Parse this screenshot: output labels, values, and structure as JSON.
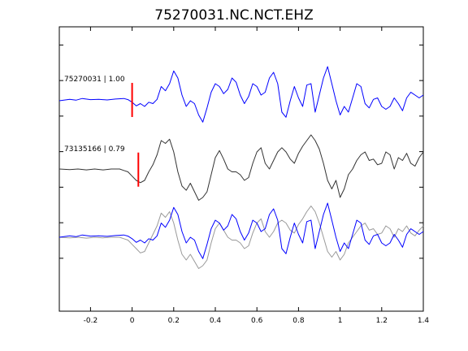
{
  "chart_data": {
    "type": "line",
    "title": "75270031.NC.NCT.EHZ",
    "xlabel": "",
    "ylabel": "",
    "xlim": [
      -0.35,
      1.4
    ],
    "ylim": [
      0,
      1
    ],
    "xticks": [
      -0.2,
      0,
      0.2,
      0.4,
      0.6,
      0.8,
      1,
      1.2,
      1.4
    ],
    "xtick_labels": [
      "-0.2",
      "0",
      "0.2",
      "0.4",
      "0.6",
      "0.8",
      "1",
      "1.2",
      "1.4"
    ],
    "grid": false,
    "traces": [
      {
        "label": "75270031 | 1.00",
        "color": "#0000ff",
        "baseline": 0.74,
        "pick_time": 0.0,
        "pick_color": "#ff0000",
        "x": [
          -0.35,
          -0.3,
          -0.27,
          -0.24,
          -0.2,
          -0.16,
          -0.12,
          -0.08,
          -0.04,
          -0.02,
          0,
          0.02,
          0.04,
          0.06,
          0.08,
          0.1,
          0.12,
          0.14,
          0.16,
          0.18,
          0.2,
          0.22,
          0.24,
          0.26,
          0.28,
          0.3,
          0.32,
          0.34,
          0.36,
          0.38,
          0.4,
          0.42,
          0.44,
          0.46,
          0.48,
          0.5,
          0.52,
          0.54,
          0.56,
          0.58,
          0.6,
          0.62,
          0.64,
          0.66,
          0.68,
          0.7,
          0.72,
          0.74,
          0.76,
          0.78,
          0.8,
          0.82,
          0.84,
          0.86,
          0.88,
          0.9,
          0.92,
          0.94,
          0.96,
          0.98,
          1,
          1.02,
          1.04,
          1.06,
          1.08,
          1.1,
          1.12,
          1.14,
          1.16,
          1.18,
          1.2,
          1.22,
          1.24,
          1.26,
          1.28,
          1.3,
          1.32,
          1.34,
          1.36,
          1.38,
          1.4
        ],
        "y": [
          0.74,
          0.745,
          0.742,
          0.748,
          0.744,
          0.745,
          0.743,
          0.746,
          0.748,
          0.744,
          0.735,
          0.722,
          0.73,
          0.72,
          0.735,
          0.73,
          0.745,
          0.79,
          0.775,
          0.8,
          0.845,
          0.82,
          0.76,
          0.72,
          0.74,
          0.73,
          0.69,
          0.665,
          0.715,
          0.77,
          0.8,
          0.79,
          0.765,
          0.78,
          0.82,
          0.805,
          0.76,
          0.73,
          0.755,
          0.8,
          0.79,
          0.76,
          0.77,
          0.82,
          0.84,
          0.8,
          0.7,
          0.682,
          0.74,
          0.79,
          0.75,
          0.72,
          0.795,
          0.8,
          0.7,
          0.76,
          0.82,
          0.86,
          0.8,
          0.74,
          0.69,
          0.72,
          0.7,
          0.75,
          0.8,
          0.79,
          0.73,
          0.715,
          0.745,
          0.75,
          0.72,
          0.71,
          0.72,
          0.75,
          0.73,
          0.705,
          0.75,
          0.77,
          0.76,
          0.75,
          0.76
        ]
      },
      {
        "label": "73135166 | 0.79",
        "color": "#333333",
        "baseline": 0.495,
        "pick_time": 0.03,
        "pick_color": "#ff0000",
        "x": [
          -0.35,
          -0.3,
          -0.26,
          -0.22,
          -0.18,
          -0.14,
          -0.1,
          -0.06,
          -0.04,
          -0.02,
          0,
          0.02,
          0.04,
          0.06,
          0.08,
          0.1,
          0.12,
          0.14,
          0.16,
          0.18,
          0.2,
          0.22,
          0.24,
          0.26,
          0.28,
          0.3,
          0.32,
          0.34,
          0.36,
          0.38,
          0.4,
          0.42,
          0.44,
          0.46,
          0.48,
          0.5,
          0.52,
          0.54,
          0.56,
          0.58,
          0.6,
          0.62,
          0.64,
          0.66,
          0.68,
          0.7,
          0.72,
          0.74,
          0.76,
          0.78,
          0.8,
          0.82,
          0.84,
          0.86,
          0.88,
          0.9,
          0.92,
          0.94,
          0.96,
          0.98,
          1,
          1.02,
          1.04,
          1.06,
          1.08,
          1.1,
          1.12,
          1.14,
          1.16,
          1.18,
          1.2,
          1.22,
          1.24,
          1.26,
          1.28,
          1.3,
          1.32,
          1.34,
          1.36,
          1.38,
          1.4
        ],
        "y": [
          0.5,
          0.498,
          0.5,
          0.497,
          0.5,
          0.497,
          0.5,
          0.5,
          0.495,
          0.49,
          0.475,
          0.46,
          0.452,
          0.46,
          0.49,
          0.515,
          0.55,
          0.6,
          0.59,
          0.605,
          0.56,
          0.49,
          0.44,
          0.425,
          0.45,
          0.42,
          0.39,
          0.4,
          0.42,
          0.48,
          0.54,
          0.565,
          0.535,
          0.5,
          0.49,
          0.49,
          0.48,
          0.46,
          0.47,
          0.52,
          0.56,
          0.575,
          0.52,
          0.5,
          0.53,
          0.56,
          0.575,
          0.56,
          0.535,
          0.52,
          0.555,
          0.58,
          0.6,
          0.62,
          0.6,
          0.57,
          0.52,
          0.46,
          0.43,
          0.46,
          0.4,
          0.43,
          0.48,
          0.5,
          0.53,
          0.55,
          0.56,
          0.53,
          0.535,
          0.515,
          0.52,
          0.56,
          0.55,
          0.5,
          0.54,
          0.53,
          0.555,
          0.52,
          0.51,
          0.54,
          0.56
        ]
      },
      {
        "label": "",
        "color": "#999999",
        "baseline": 0.26,
        "pick_time": null,
        "x": [
          -0.35,
          -0.3,
          -0.26,
          -0.22,
          -0.18,
          -0.14,
          -0.1,
          -0.06,
          -0.04,
          -0.02,
          0,
          0.02,
          0.04,
          0.06,
          0.08,
          0.1,
          0.12,
          0.14,
          0.16,
          0.18,
          0.2,
          0.22,
          0.24,
          0.26,
          0.28,
          0.3,
          0.32,
          0.34,
          0.36,
          0.38,
          0.4,
          0.42,
          0.44,
          0.46,
          0.48,
          0.5,
          0.52,
          0.54,
          0.56,
          0.58,
          0.6,
          0.62,
          0.64,
          0.66,
          0.68,
          0.7,
          0.72,
          0.74,
          0.76,
          0.78,
          0.8,
          0.82,
          0.84,
          0.86,
          0.88,
          0.9,
          0.92,
          0.94,
          0.96,
          0.98,
          1,
          1.02,
          1.04,
          1.06,
          1.08,
          1.1,
          1.12,
          1.14,
          1.16,
          1.18,
          1.2,
          1.22,
          1.24,
          1.26,
          1.28,
          1.3,
          1.32,
          1.34,
          1.36,
          1.38,
          1.4
        ],
        "y": [
          0.26,
          0.258,
          0.26,
          0.257,
          0.26,
          0.258,
          0.26,
          0.26,
          0.255,
          0.25,
          0.235,
          0.22,
          0.205,
          0.21,
          0.24,
          0.27,
          0.3,
          0.345,
          0.33,
          0.35,
          0.31,
          0.25,
          0.2,
          0.18,
          0.2,
          0.175,
          0.15,
          0.16,
          0.18,
          0.24,
          0.29,
          0.31,
          0.285,
          0.26,
          0.25,
          0.25,
          0.24,
          0.22,
          0.23,
          0.275,
          0.31,
          0.325,
          0.28,
          0.26,
          0.28,
          0.31,
          0.32,
          0.31,
          0.285,
          0.275,
          0.305,
          0.325,
          0.35,
          0.37,
          0.35,
          0.31,
          0.26,
          0.21,
          0.19,
          0.21,
          0.18,
          0.2,
          0.24,
          0.26,
          0.28,
          0.3,
          0.31,
          0.285,
          0.29,
          0.27,
          0.275,
          0.3,
          0.29,
          0.26,
          0.29,
          0.28,
          0.3,
          0.275,
          0.265,
          0.285,
          0.3
        ]
      },
      {
        "label": "",
        "color": "#0000ff",
        "baseline": 0.26,
        "pick_time": null,
        "x": [
          -0.35,
          -0.3,
          -0.27,
          -0.24,
          -0.2,
          -0.16,
          -0.12,
          -0.08,
          -0.04,
          -0.02,
          0,
          0.02,
          0.04,
          0.06,
          0.08,
          0.1,
          0.12,
          0.14,
          0.16,
          0.18,
          0.2,
          0.22,
          0.24,
          0.26,
          0.28,
          0.3,
          0.32,
          0.34,
          0.36,
          0.38,
          0.4,
          0.42,
          0.44,
          0.46,
          0.48,
          0.5,
          0.52,
          0.54,
          0.56,
          0.58,
          0.6,
          0.62,
          0.64,
          0.66,
          0.68,
          0.7,
          0.72,
          0.74,
          0.76,
          0.78,
          0.8,
          0.82,
          0.84,
          0.86,
          0.88,
          0.9,
          0.92,
          0.94,
          0.96,
          0.98,
          1,
          1.02,
          1.04,
          1.06,
          1.08,
          1.1,
          1.12,
          1.14,
          1.16,
          1.18,
          1.2,
          1.22,
          1.24,
          1.26,
          1.28,
          1.3,
          1.32,
          1.34,
          1.36,
          1.38,
          1.4
        ],
        "y": [
          0.26,
          0.265,
          0.262,
          0.268,
          0.264,
          0.265,
          0.263,
          0.266,
          0.268,
          0.264,
          0.255,
          0.242,
          0.25,
          0.24,
          0.255,
          0.25,
          0.265,
          0.31,
          0.295,
          0.32,
          0.365,
          0.34,
          0.28,
          0.24,
          0.26,
          0.25,
          0.21,
          0.185,
          0.235,
          0.29,
          0.32,
          0.31,
          0.285,
          0.3,
          0.34,
          0.325,
          0.28,
          0.25,
          0.275,
          0.32,
          0.31,
          0.28,
          0.29,
          0.34,
          0.36,
          0.32,
          0.22,
          0.202,
          0.26,
          0.31,
          0.27,
          0.24,
          0.315,
          0.32,
          0.22,
          0.28,
          0.34,
          0.38,
          0.32,
          0.26,
          0.21,
          0.24,
          0.22,
          0.27,
          0.32,
          0.31,
          0.25,
          0.235,
          0.265,
          0.27,
          0.24,
          0.23,
          0.24,
          0.27,
          0.25,
          0.225,
          0.27,
          0.29,
          0.28,
          0.27,
          0.28
        ]
      }
    ]
  }
}
